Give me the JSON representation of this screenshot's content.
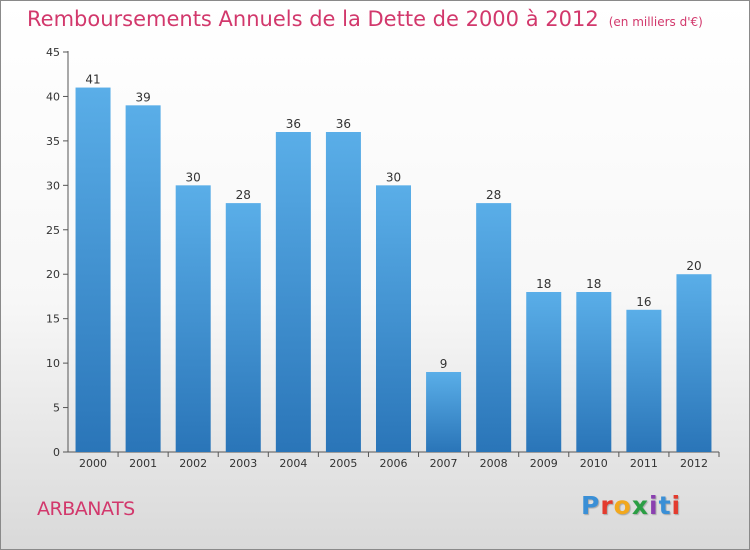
{
  "title": "Remboursements Annuels de la Dette de 2000 à 2012",
  "unit_note": "(en milliers d'€)",
  "place": "ARBANATS",
  "brand": {
    "letters": [
      "P",
      "r",
      "o",
      "x",
      "i",
      "t",
      "i"
    ],
    "colors": [
      "#3a8fd6",
      "#e33b2e",
      "#f2a81d",
      "#2b9e44",
      "#8a3fb0",
      "#3a8fd6",
      "#e33b2e"
    ]
  },
  "colors": {
    "bar_top": "#5aaee8",
    "bar_bottom": "#2a75b8",
    "title": "#d2386c"
  },
  "chart_data": {
    "type": "bar",
    "categories": [
      "2000",
      "2001",
      "2002",
      "2003",
      "2004",
      "2005",
      "2006",
      "2007",
      "2008",
      "2009",
      "2010",
      "2011",
      "2012"
    ],
    "values": [
      41,
      39,
      30,
      28,
      36,
      36,
      30,
      9,
      28,
      18,
      18,
      16,
      20
    ],
    "title": "Remboursements Annuels de la Dette de 2000 à 2012",
    "xlabel": "",
    "ylabel": "",
    "ylim": [
      0,
      45
    ],
    "yticks": [
      0,
      5,
      10,
      15,
      20,
      25,
      30,
      35,
      40,
      45
    ],
    "grid": false,
    "legend": "none"
  }
}
